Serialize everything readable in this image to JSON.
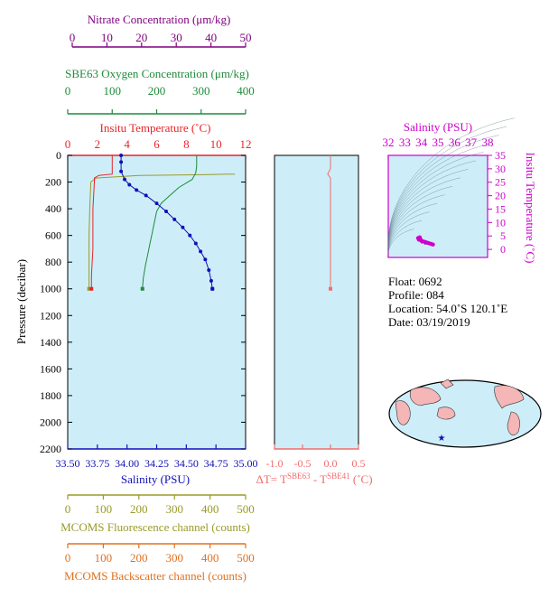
{
  "colors": {
    "nitrate": "#800080",
    "oxygen": "#1e8b3a",
    "temperature": "#e8242a",
    "salinity": "#1010b8",
    "fluorescence": "#9a9a28",
    "backscatter": "#e07020",
    "deltaT": "#f26b6b",
    "ts": "#cc00cc",
    "panel": "#cdeef8",
    "land": "#f4b6b6"
  },
  "axes": {
    "nitrate": {
      "label": "Nitrate Concentration (μm/kg)",
      "ticks": [
        "0",
        "10",
        "20",
        "30",
        "40",
        "50"
      ]
    },
    "oxygen": {
      "label": "SBE63 Oxygen Concentration (μm/kg)",
      "ticks": [
        "0",
        "100",
        "200",
        "300",
        "400"
      ]
    },
    "temperature": {
      "label": "Insitu Temperature (˚C)",
      "ticks": [
        "0",
        "2",
        "4",
        "6",
        "8",
        "10",
        "12"
      ]
    },
    "pressure": {
      "label": "Pressure (decibar)",
      "ticks": [
        "0",
        "200",
        "400",
        "600",
        "800",
        "1000",
        "1200",
        "1400",
        "1600",
        "1800",
        "2000",
        "2200"
      ]
    },
    "salinity": {
      "label": "Salinity (PSU)",
      "ticks": [
        "33.50",
        "33.75",
        "34.00",
        "34.25",
        "34.50",
        "34.75",
        "35.00"
      ]
    },
    "deltaT": {
      "label_prefix": "ΔT= T",
      "sup1": "SBE63",
      "label_mid": " - T",
      "sup2": "SBE41",
      "label_suffix": " (˚C)",
      "ticks": [
        "-1.0",
        "-0.5",
        "0.0",
        "0.5"
      ]
    },
    "fluorescence": {
      "label": "MCOMS Fluorescence channel (counts)",
      "ticks": [
        "0",
        "100",
        "200",
        "300",
        "400",
        "500"
      ]
    },
    "backscatter": {
      "label": "MCOMS Backscatter channel (counts)",
      "ticks": [
        "0",
        "100",
        "200",
        "300",
        "400",
        "500"
      ]
    },
    "ts_salinity": {
      "label": "Salinity (PSU)",
      "ticks": [
        "32",
        "33",
        "34",
        "35",
        "36",
        "37",
        "38"
      ]
    },
    "ts_temperature": {
      "label": "Insitu Temperature (˚C)",
      "ticks": [
        "0",
        "5",
        "10",
        "15",
        "20",
        "25",
        "30",
        "35"
      ]
    }
  },
  "info": {
    "float": "Float:  0692",
    "profile": "Profile:  084",
    "location": "Location:  54.0˚S  120.1˚E",
    "date": "Date:  03/19/2019"
  },
  "chart_data": [
    {
      "type": "line",
      "name": "Temperature",
      "xlim": [
        0,
        12
      ],
      "ylim": [
        2200,
        0
      ],
      "x": [
        3.0,
        3.0,
        3.0,
        2.1,
        1.8,
        1.8,
        1.75,
        1.7,
        1.7,
        1.7,
        1.65,
        1.6,
        1.6
      ],
      "y": [
        0,
        100,
        140,
        150,
        170,
        200,
        300,
        400,
        600,
        700,
        800,
        900,
        1000
      ]
    },
    {
      "type": "line",
      "name": "Salinity",
      "xlim": [
        33.5,
        35.0
      ],
      "ylim": [
        2200,
        0
      ],
      "x": [
        33.95,
        33.95,
        33.95,
        33.98,
        34.02,
        34.08,
        34.16,
        34.25,
        34.33,
        34.4,
        34.47,
        34.53,
        34.58,
        34.62,
        34.66,
        34.69,
        34.71,
        34.72
      ],
      "y": [
        0,
        50,
        120,
        180,
        220,
        260,
        300,
        360,
        420,
        480,
        540,
        600,
        660,
        720,
        780,
        860,
        940,
        1000
      ]
    },
    {
      "type": "line",
      "name": "Oxygen",
      "xlim": [
        0,
        400
      ],
      "ylim": [
        2200,
        0
      ],
      "x": [
        290,
        290,
        288,
        280,
        250,
        230,
        210,
        200,
        195,
        190,
        185,
        180,
        175,
        170,
        168
      ],
      "y": [
        0,
        80,
        130,
        180,
        240,
        300,
        360,
        420,
        500,
        580,
        660,
        740,
        820,
        920,
        1000
      ]
    },
    {
      "type": "line",
      "name": "Fluorescence",
      "xlim": [
        0,
        500
      ],
      "ylim": [
        2200,
        0
      ],
      "x": [
        470,
        380,
        200,
        80,
        65,
        62,
        60,
        60,
        60
      ],
      "y": [
        140,
        145,
        150,
        170,
        200,
        400,
        600,
        800,
        1000
      ]
    },
    {
      "type": "line",
      "name": "DeltaT",
      "xlim": [
        -1.0,
        0.5
      ],
      "ylim": [
        2200,
        0
      ],
      "x": [
        0.0,
        0.0,
        -0.05,
        0.0,
        0.0,
        0.0
      ],
      "y": [
        0,
        100,
        140,
        170,
        300,
        1000
      ]
    },
    {
      "type": "scatter",
      "name": "TS",
      "xlim": [
        32,
        38
      ],
      "ylim": [
        -3,
        35
      ],
      "x": [
        33.8,
        33.9,
        33.95,
        34.0,
        34.1,
        34.2,
        34.3,
        34.4,
        34.5,
        34.6,
        34.7,
        33.85,
        34.05,
        34.25
      ],
      "y": [
        4.2,
        4.5,
        3.8,
        3.2,
        3.0,
        2.8,
        2.6,
        2.4,
        2.2,
        2.0,
        1.8,
        3.6,
        2.9,
        2.5
      ]
    }
  ]
}
